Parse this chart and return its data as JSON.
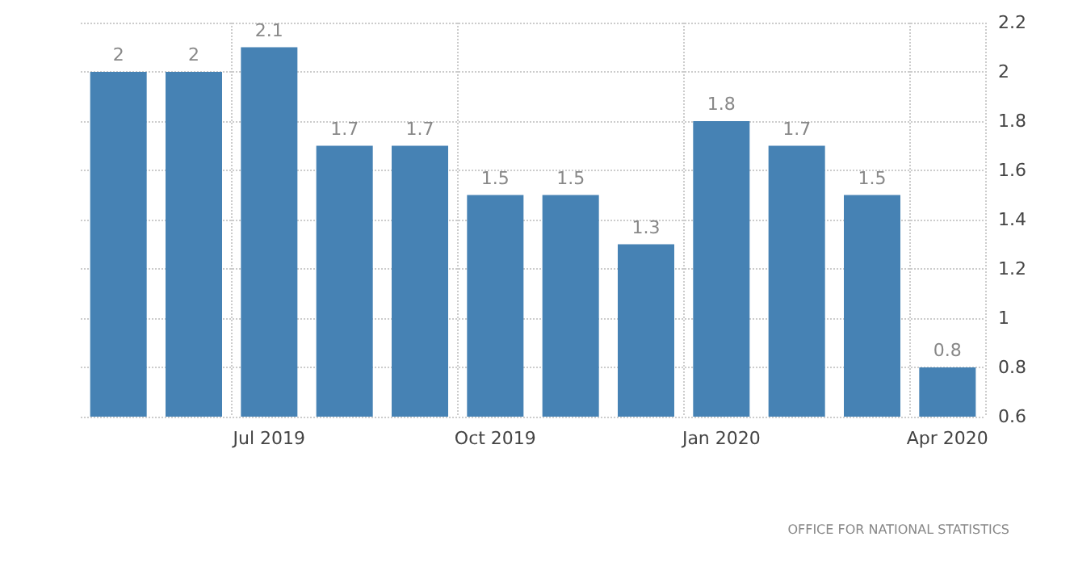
{
  "chart_data": {
    "type": "bar",
    "categories": [
      null,
      null,
      "Jul 2019",
      null,
      null,
      "Oct 2019",
      null,
      null,
      "Jan 2020",
      null,
      null,
      "Apr 2020"
    ],
    "values": [
      2,
      2,
      2.1,
      1.7,
      1.7,
      1.5,
      1.5,
      1.3,
      1.8,
      1.7,
      1.5,
      0.8
    ],
    "color": "#4682b4",
    "ylim": [
      0.6,
      2.2
    ],
    "yticks": [
      0.6,
      0.8,
      1,
      1.2,
      1.4,
      1.6,
      1.8,
      2,
      2.2
    ],
    "grid": true,
    "data_labels": true,
    "annotations": [
      "OFFICE FOR NATIONAL STATISTICS"
    ]
  }
}
